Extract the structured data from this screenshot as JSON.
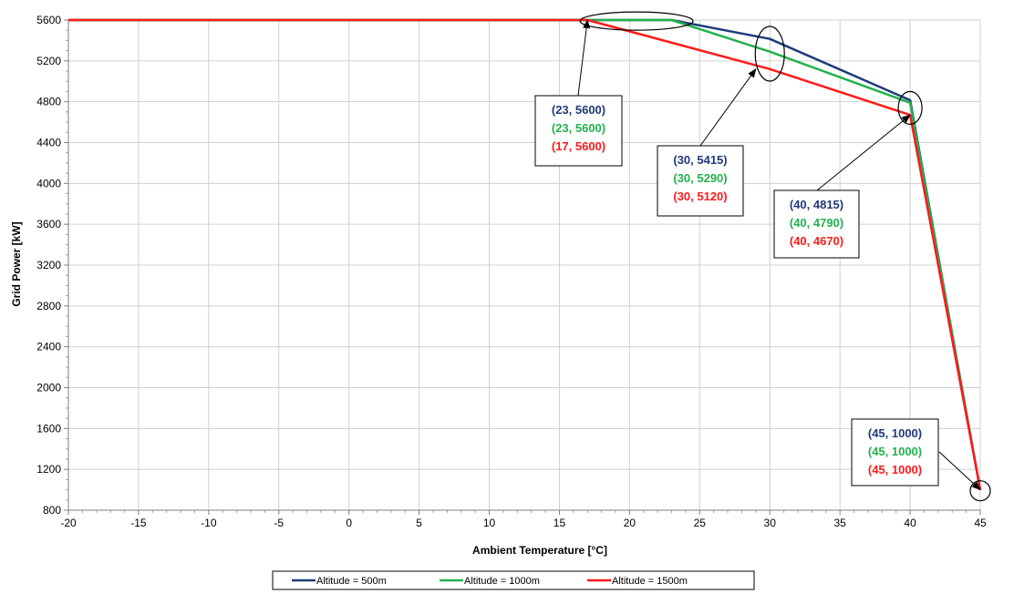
{
  "chart_data": {
    "type": "line",
    "title": "",
    "xlabel": "Ambient Temperature [°C]",
    "ylabel": "Grid Power [kW]",
    "xlim": [
      -20,
      45
    ],
    "ylim": [
      800,
      5600
    ],
    "xticks": [
      -20,
      -15,
      -10,
      -5,
      0,
      5,
      10,
      15,
      20,
      25,
      30,
      35,
      40,
      45
    ],
    "yticks": [
      800,
      1200,
      1600,
      2000,
      2400,
      2800,
      3200,
      3600,
      4000,
      4400,
      4800,
      5200,
      5600
    ],
    "grid": true,
    "legend_position": "bottom",
    "series": [
      {
        "name": "Altitude = 500m",
        "color": "#1f3a7a",
        "points": [
          [
            -20,
            5600
          ],
          [
            23,
            5600
          ],
          [
            30,
            5415
          ],
          [
            40,
            4815
          ],
          [
            45,
            1000
          ]
        ]
      },
      {
        "name": "Altitude = 1000m",
        "color": "#22b14c",
        "points": [
          [
            -20,
            5600
          ],
          [
            23,
            5600
          ],
          [
            30,
            5290
          ],
          [
            40,
            4790
          ],
          [
            45,
            1000
          ]
        ]
      },
      {
        "name": "Altitude = 1500m",
        "color": "#ff1a1a",
        "points": [
          [
            -20,
            5600
          ],
          [
            17,
            5600
          ],
          [
            30,
            5120
          ],
          [
            40,
            4670
          ],
          [
            45,
            1000
          ]
        ]
      }
    ],
    "annotations": [
      {
        "lines": [
          "(23, 5600)",
          "(23, 5600)",
          "(17, 5600)"
        ],
        "target": [
          17,
          5600
        ]
      },
      {
        "lines": [
          "(30, 5415)",
          "(30, 5290)",
          "(30, 5120)"
        ],
        "target": [
          29,
          5120
        ]
      },
      {
        "lines": [
          "(40, 4815)",
          "(40, 4790)",
          "(40, 4670)"
        ],
        "target": [
          40,
          4670
        ]
      },
      {
        "lines": [
          "(45, 1000)",
          "(45, 1000)",
          "(45, 1000)"
        ],
        "target": [
          45,
          1000
        ]
      }
    ],
    "highlight_ellipses": [
      {
        "center": [
          20.5,
          5590
        ]
      },
      {
        "center": [
          30,
          5270
        ]
      },
      {
        "center": [
          40,
          4740
        ]
      },
      {
        "center": [
          45,
          990
        ]
      }
    ]
  }
}
